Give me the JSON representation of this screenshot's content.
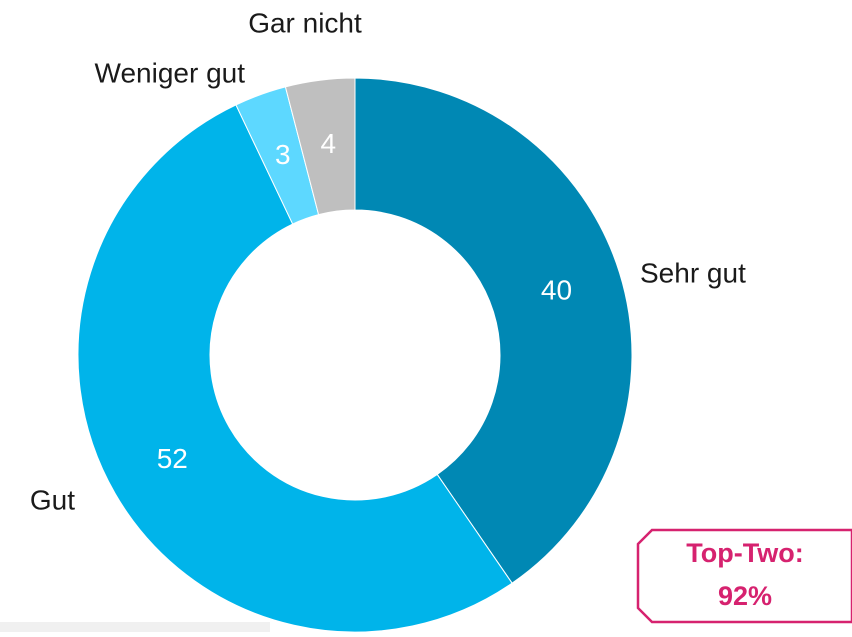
{
  "chart_data": {
    "type": "donut",
    "categories": [
      "Sehr gut",
      "Gut",
      "Weniger gut",
      "Gar nicht"
    ],
    "values": [
      40,
      52,
      3,
      4
    ],
    "colors": [
      "#0088b4",
      "#00b4ea",
      "#5dd8ff",
      "#bfbfbf"
    ],
    "annotation": {
      "lines": [
        "Top-Two:",
        "92%"
      ],
      "color": "#d6226f"
    }
  }
}
